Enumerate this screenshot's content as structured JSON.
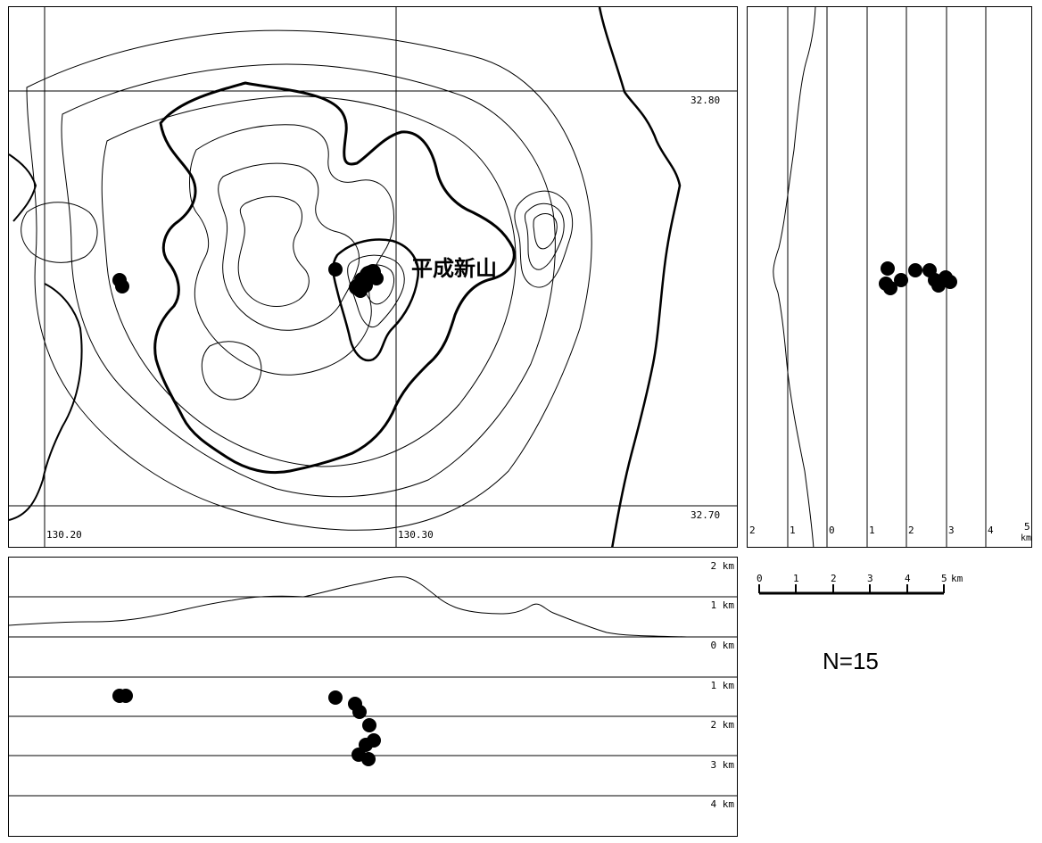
{
  "map": {
    "lat_labels": [
      "32.80",
      "32.70"
    ],
    "lon_labels": [
      "130.20",
      "130.30"
    ],
    "place_label": "平成新山"
  },
  "ns_section": {
    "tick_labels": [
      "2",
      "1",
      "0",
      "1",
      "2",
      "3",
      "4",
      "5"
    ],
    "unit": "km"
  },
  "depth_section": {
    "labels": [
      "2 km",
      "1 km",
      "0 km",
      "1 km",
      "2 km",
      "3 km",
      "4 km"
    ]
  },
  "scale_bar": {
    "ticks": [
      "0",
      "1",
      "2",
      "3",
      "4",
      "5"
    ],
    "unit": "km"
  },
  "count_label": "N=15",
  "colors": {
    "line": "#000000",
    "background": "#ffffff",
    "hypocenter": "#000000"
  }
}
